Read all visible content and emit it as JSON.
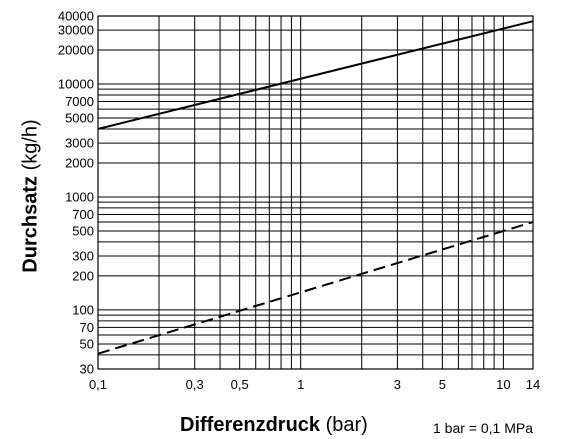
{
  "chart_data": {
    "type": "line",
    "title": "",
    "xlabel_bold": "Differenzdruck",
    "xlabel_unit": "(bar)",
    "ylabel_bold": "Durchsatz",
    "ylabel_unit": "(kg/h)",
    "note": "1 bar = 0,1 MPa",
    "x_scale": "log",
    "y_scale": "log",
    "xlim": [
      0.1,
      14
    ],
    "ylim": [
      30,
      40000
    ],
    "grid": true,
    "x_ticks": [
      {
        "value": 0.1,
        "label": "0,1"
      },
      {
        "value": 0.3,
        "label": "0,3"
      },
      {
        "value": 0.5,
        "label": "0,5"
      },
      {
        "value": 1,
        "label": "1"
      },
      {
        "value": 3,
        "label": "3"
      },
      {
        "value": 5,
        "label": "5"
      },
      {
        "value": 10,
        "label": "10"
      },
      {
        "value": 14,
        "label": "14"
      }
    ],
    "y_ticks": [
      {
        "value": 30,
        "label": "30"
      },
      {
        "value": 50,
        "label": "50"
      },
      {
        "value": 70,
        "label": "70"
      },
      {
        "value": 100,
        "label": "100"
      },
      {
        "value": 200,
        "label": "200"
      },
      {
        "value": 300,
        "label": "300"
      },
      {
        "value": 500,
        "label": "500"
      },
      {
        "value": 700,
        "label": "700"
      },
      {
        "value": 1000,
        "label": "1000"
      },
      {
        "value": 2000,
        "label": "2000"
      },
      {
        "value": 3000,
        "label": "3000"
      },
      {
        "value": 5000,
        "label": "5000"
      },
      {
        "value": 7000,
        "label": "7000"
      },
      {
        "value": 10000,
        "label": "10000"
      },
      {
        "value": 20000,
        "label": "20000"
      },
      {
        "value": 30000,
        "label": "30000"
      },
      {
        "value": 40000,
        "label": "40000"
      }
    ],
    "x_grid": [
      0.1,
      0.2,
      0.3,
      0.4,
      0.5,
      0.6,
      0.7,
      0.8,
      0.9,
      1,
      2,
      3,
      4,
      5,
      6,
      7,
      8,
      9,
      10,
      14
    ],
    "y_grid": [
      30,
      40,
      50,
      60,
      70,
      80,
      90,
      100,
      200,
      300,
      400,
      500,
      600,
      700,
      800,
      900,
      1000,
      2000,
      3000,
      4000,
      5000,
      6000,
      7000,
      8000,
      9000,
      10000,
      20000,
      30000,
      40000
    ],
    "series": [
      {
        "style": "solid",
        "color": "#000000",
        "x": [
          0.1,
          14
        ],
        "y": [
          4000,
          36000
        ]
      },
      {
        "style": "dashed",
        "color": "#000000",
        "x": [
          0.1,
          14
        ],
        "y": [
          41,
          600
        ]
      }
    ]
  }
}
